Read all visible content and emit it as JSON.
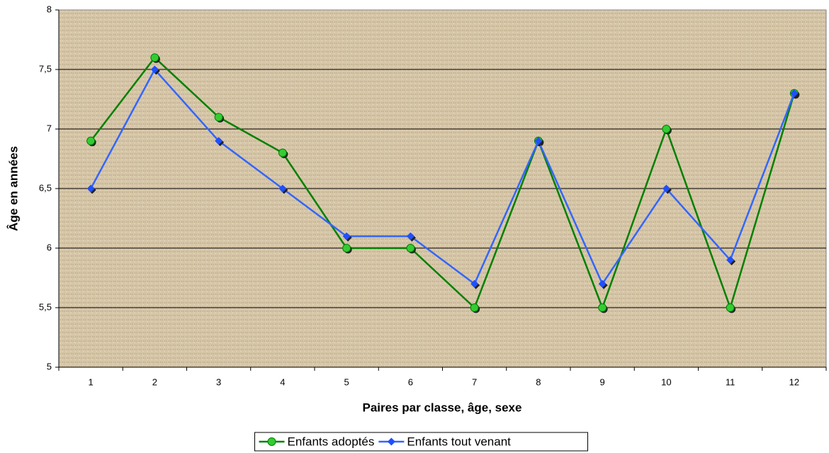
{
  "chart_data": {
    "type": "line",
    "xlabel": "Paires par classe, âge, sexe",
    "ylabel": "Âge en années",
    "categories": [
      "1",
      "2",
      "3",
      "4",
      "5",
      "6",
      "7",
      "8",
      "9",
      "10",
      "11",
      "12"
    ],
    "series": [
      {
        "name": "Enfants adoptés",
        "color": "#008000",
        "marker_color": "#33cc33",
        "marker": "circle",
        "values": [
          6.9,
          7.6,
          7.1,
          6.8,
          6.0,
          6.0,
          5.5,
          6.9,
          5.5,
          7.0,
          5.5,
          7.3
        ]
      },
      {
        "name": "Enfants tout venant",
        "color": "#3366ff",
        "marker_color": "#1f4fff",
        "marker": "diamond",
        "values": [
          6.5,
          7.5,
          6.9,
          6.5,
          6.1,
          6.1,
          5.7,
          6.9,
          5.7,
          6.5,
          5.9,
          7.3
        ]
      }
    ],
    "ylim": [
      5,
      8
    ],
    "yticks": [
      5,
      {
        "value": 5.5,
        "label": "5,5"
      },
      6,
      {
        "value": 6.5,
        "label": "6,5"
      },
      7,
      {
        "value": 7.5,
        "label": "7,5"
      },
      8
    ],
    "grid": true,
    "legend": "bottom"
  }
}
